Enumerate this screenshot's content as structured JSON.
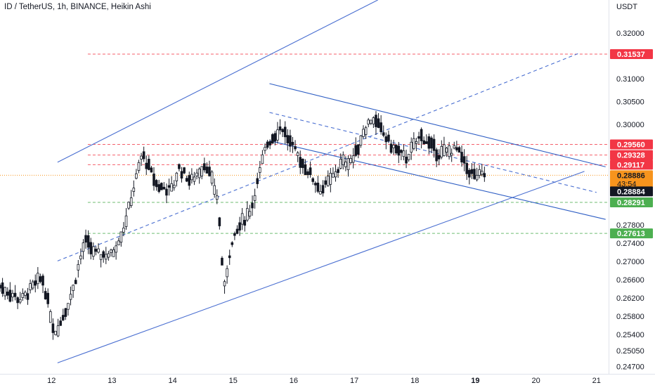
{
  "chart_data": {
    "type": "candlestick",
    "title": "ID / TetherUS, 1h, BINANCE, Heikin Ashi",
    "currency": "USDT",
    "x_ticks": [
      "12",
      "13",
      "14",
      "15",
      "16",
      "17",
      "18",
      "19",
      "20",
      "21"
    ],
    "x_tick_days": [
      12,
      13,
      14,
      15,
      16,
      17,
      18,
      19,
      20,
      21
    ],
    "highlight_tick": "19",
    "xlim": [
      11.15,
      21.2
    ],
    "ylim": [
      0.2454,
      0.3272
    ],
    "y_ticks": [
      "0.32000",
      "0.31000",
      "0.30500",
      "0.30000",
      "0.27800",
      "0.27400",
      "0.27000",
      "0.26600",
      "0.26200",
      "0.25800",
      "0.25400",
      "0.25050",
      "0.24700"
    ],
    "y_tick_values": [
      0.32,
      0.31,
      0.305,
      0.3,
      0.278,
      0.274,
      0.27,
      0.266,
      0.262,
      0.258,
      0.254,
      0.2505,
      0.247
    ],
    "price_levels": [
      {
        "label": "0.31537",
        "value": 0.31537,
        "color": "#f23645",
        "style": "dashed"
      },
      {
        "label": "0.29560",
        "value": 0.2956,
        "color": "#f23645",
        "style": "dashed"
      },
      {
        "label": "0.29328",
        "value": 0.29328,
        "color": "#f23645",
        "style": "dashed"
      },
      {
        "label": "0.29117",
        "value": 0.29117,
        "color": "#f23645",
        "style": "dashed"
      },
      {
        "label": "0.28291",
        "value": 0.28291,
        "color": "#4caf50",
        "style": "dashed"
      },
      {
        "label": "0.27613",
        "value": 0.27613,
        "color": "#4caf50",
        "style": "dashed"
      }
    ],
    "last_price": {
      "label": "0.28886",
      "value": 0.28886,
      "countdown": "43:54",
      "color": "#f7941d"
    },
    "crosshair_price": {
      "label": "0.28884",
      "value": 0.28884,
      "color": "#131722"
    },
    "trendlines": [
      {
        "points": [
          [
            12.1,
            0.2917
          ],
          [
            18.0,
            0.3313
          ]
        ],
        "style": "solid",
        "color": "#4a6fd1"
      },
      {
        "points": [
          [
            12.1,
            0.2478
          ],
          [
            20.8,
            0.2897
          ]
        ],
        "style": "solid",
        "color": "#4a6fd1"
      },
      {
        "points": [
          [
            12.1,
            0.2701
          ],
          [
            20.7,
            0.3155
          ]
        ],
        "style": "dashed",
        "color": "#4a6fd1"
      },
      {
        "points": [
          [
            15.6,
            0.3089
          ],
          [
            21.15,
            0.2907
          ]
        ],
        "style": "solid",
        "color": "#2e5ec4"
      },
      {
        "points": [
          [
            15.6,
            0.2964
          ],
          [
            21.15,
            0.2792
          ]
        ],
        "style": "solid",
        "color": "#2e5ec4"
      },
      {
        "points": [
          [
            15.6,
            0.3026
          ],
          [
            21.0,
            0.2851
          ]
        ],
        "style": "dashed",
        "color": "#4a6fd1"
      }
    ],
    "price_path": [
      [
        11.15,
        0.2645
      ],
      [
        11.5,
        0.2615
      ],
      [
        11.85,
        0.2665
      ],
      [
        12.05,
        0.2545
      ],
      [
        12.15,
        0.2565
      ],
      [
        12.35,
        0.2635
      ],
      [
        12.55,
        0.2745
      ],
      [
        12.75,
        0.2715
      ],
      [
        13.0,
        0.2715
      ],
      [
        13.2,
        0.2775
      ],
      [
        13.5,
        0.2935
      ],
      [
        13.75,
        0.2865
      ],
      [
        14.0,
        0.2855
      ],
      [
        14.1,
        0.2905
      ],
      [
        14.3,
        0.2875
      ],
      [
        14.55,
        0.2915
      ],
      [
        14.75,
        0.2835
      ],
      [
        14.85,
        0.2635
      ],
      [
        14.95,
        0.2725
      ],
      [
        15.1,
        0.2775
      ],
      [
        15.3,
        0.2815
      ],
      [
        15.55,
        0.2955
      ],
      [
        15.8,
        0.2995
      ],
      [
        16.0,
        0.2945
      ],
      [
        16.2,
        0.2905
      ],
      [
        16.45,
        0.2855
      ],
      [
        16.6,
        0.2875
      ],
      [
        16.8,
        0.2915
      ],
      [
        17.0,
        0.2925
      ],
      [
        17.15,
        0.2985
      ],
      [
        17.3,
        0.3015
      ],
      [
        17.6,
        0.2955
      ],
      [
        17.85,
        0.2925
      ],
      [
        18.1,
        0.2975
      ],
      [
        18.4,
        0.2935
      ],
      [
        18.7,
        0.2945
      ],
      [
        18.85,
        0.2905
      ],
      [
        19.0,
        0.2885
      ],
      [
        19.15,
        0.2889
      ]
    ],
    "grid": false,
    "axis_position": "right"
  }
}
